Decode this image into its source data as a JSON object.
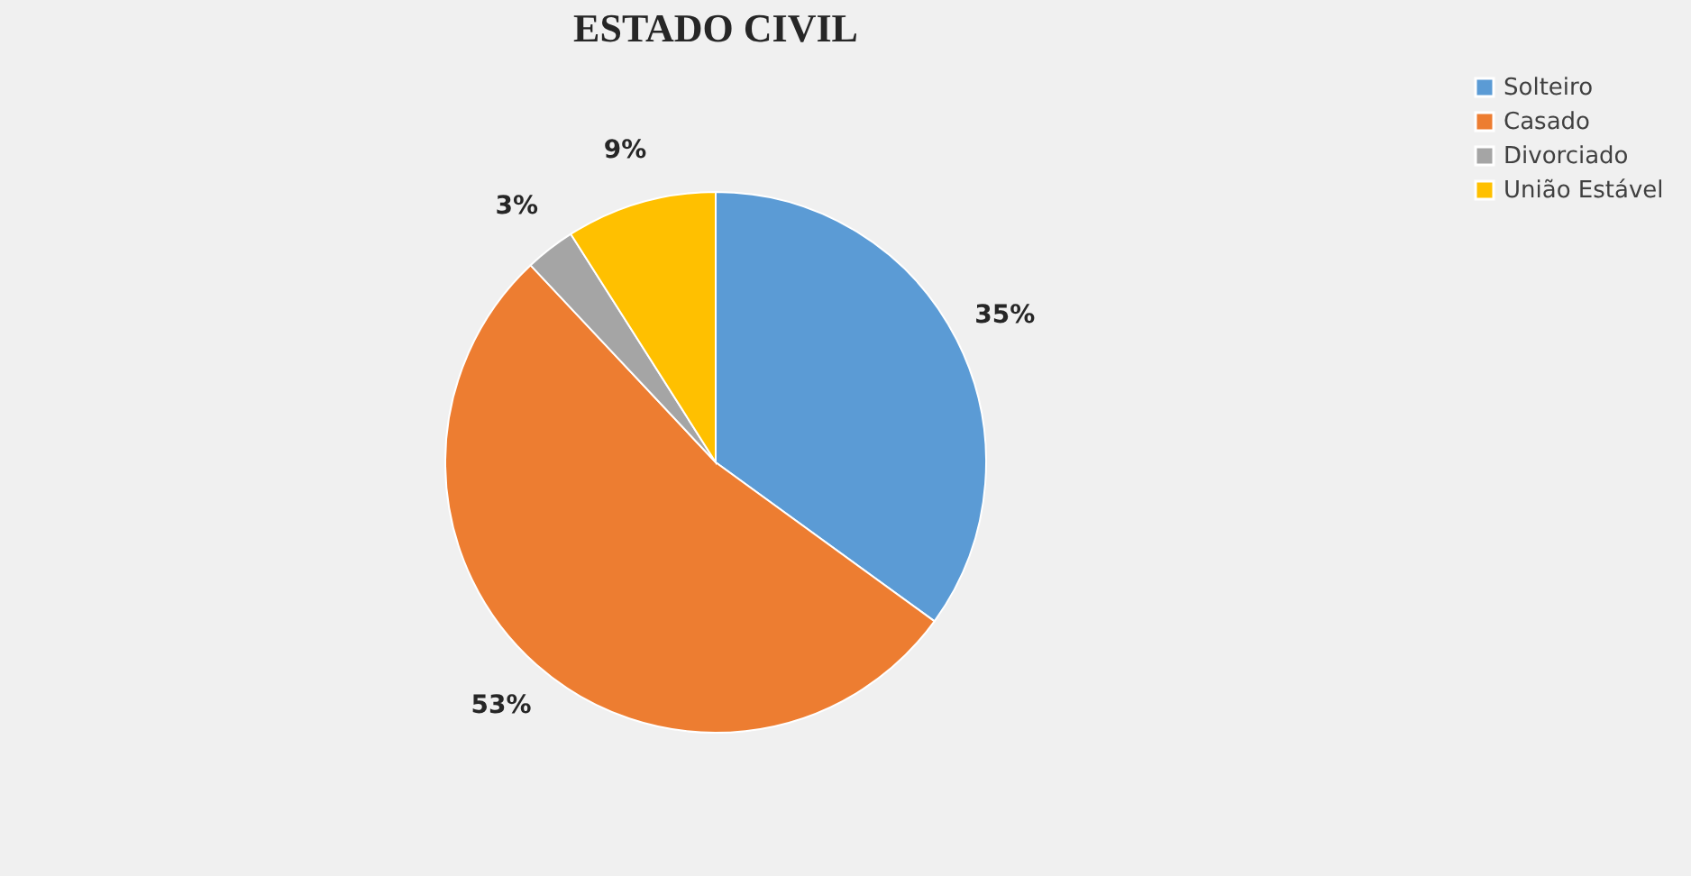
{
  "chart_data": {
    "type": "pie",
    "title": "ESTADO CIVIL",
    "categories": [
      "Solteiro",
      "Casado",
      "Divorciado",
      "União Estável"
    ],
    "values": [
      35,
      53,
      3,
      9
    ],
    "colors": [
      "#5b9bd5",
      "#ed7d31",
      "#a5a5a5",
      "#ffc000"
    ],
    "value_labels": [
      "35%",
      "53%",
      "3%",
      "9%"
    ],
    "legend": "right"
  }
}
